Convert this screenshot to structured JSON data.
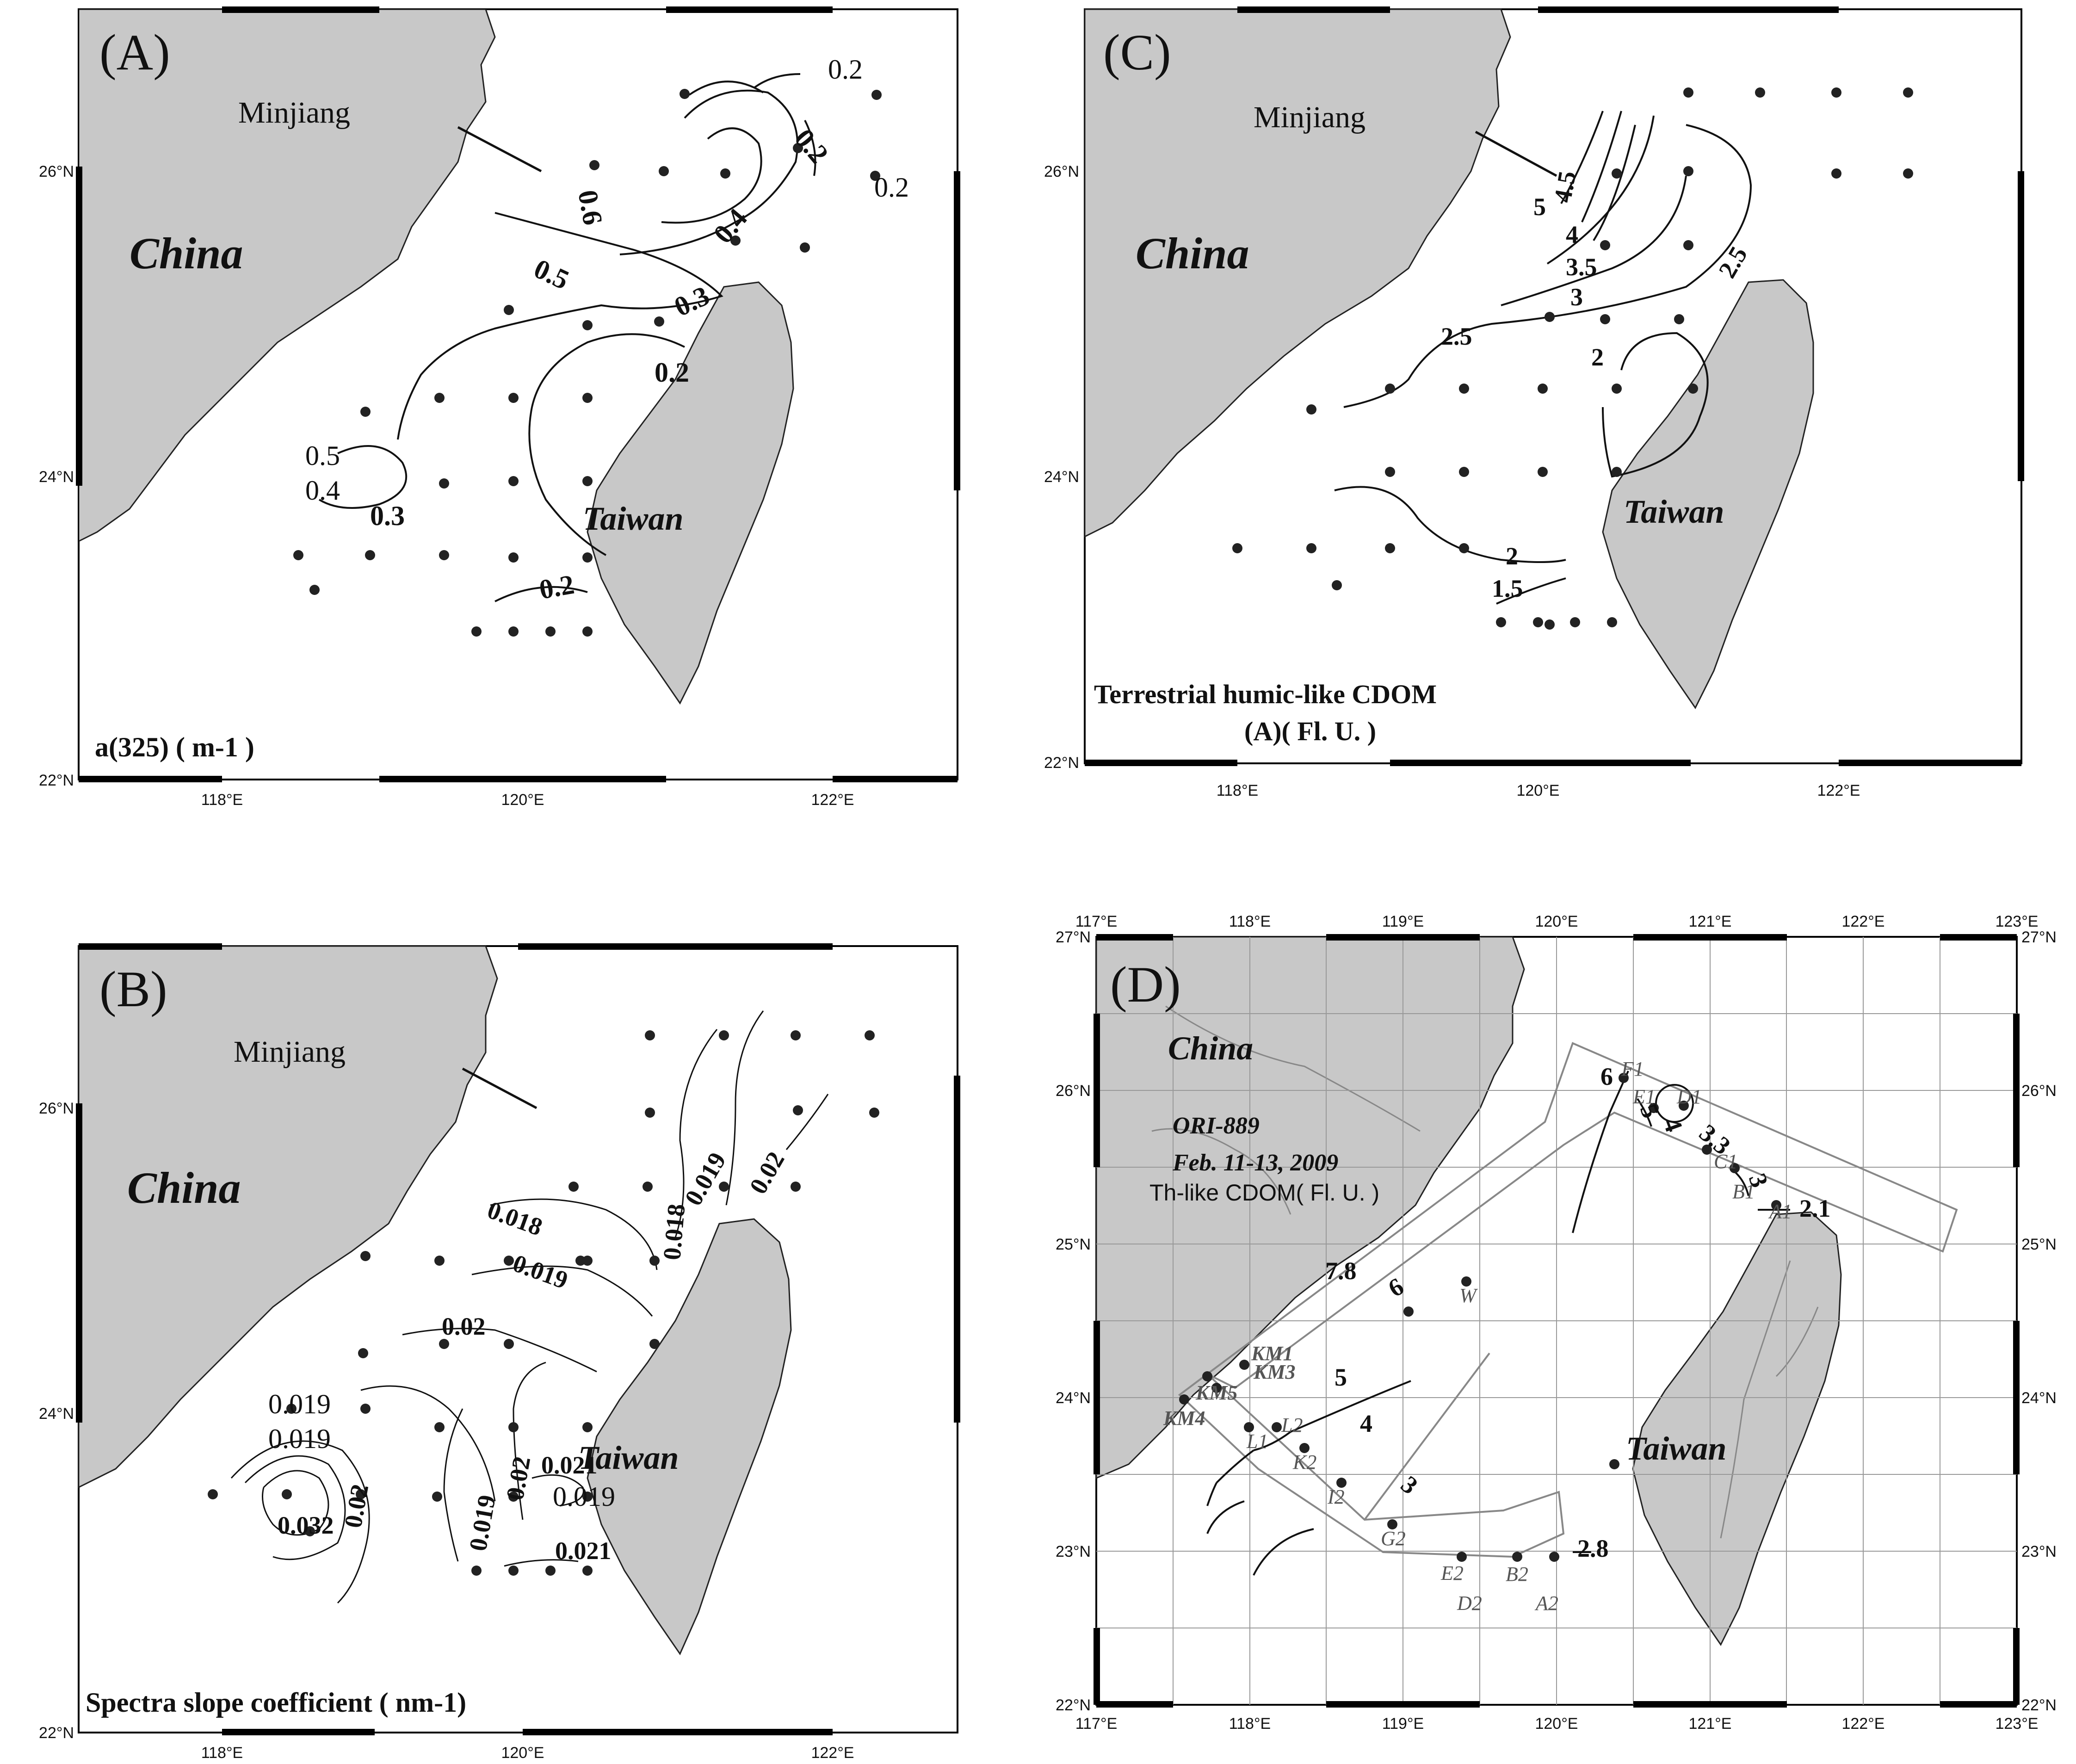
{
  "panels": [
    {
      "letter": "(A)",
      "caption": "a(325) ( m-1 )",
      "river": "Minjiang",
      "country_a": "China",
      "country_b": "Taiwan",
      "lat_ticks": [
        "26°N",
        "24°N",
        "22°N"
      ],
      "lon_ticks": [
        "118°E",
        "120°E",
        "122°E"
      ],
      "contour_labels": [
        "0.2",
        "0.2",
        "0.2",
        "0.6",
        "0.4",
        "0.5",
        "0.3",
        "0.2",
        "0.5",
        "0.4",
        "0.3",
        "0.2"
      ]
    },
    {
      "letter": "(C)",
      "caption": "Terrestrial humic-like CDOM",
      "caption2": "(A)( Fl. U. )",
      "river": "Minjiang",
      "country_a": "China",
      "country_b": "Taiwan",
      "lat_ticks": [
        "26°N",
        "24°N",
        "22°N"
      ],
      "lon_ticks": [
        "118°E",
        "120°E",
        "122°E"
      ],
      "contour_labels": [
        "5",
        "4.5",
        "4",
        "3.5",
        "3",
        "2.5",
        "2.5",
        "2",
        "2",
        "1.5"
      ]
    },
    {
      "letter": "(B)",
      "caption": "Spectra slope coefficient ( nm-1)",
      "river": "Minjiang",
      "country_a": "China",
      "country_b": "Taiwan",
      "lat_ticks": [
        "26°N",
        "24°N",
        "22°N"
      ],
      "lon_ticks": [
        "118°E",
        "120°E",
        "122°E"
      ],
      "contour_labels": [
        "0.019",
        "0.02",
        "0.018",
        "0.018",
        "0.019",
        "0.02",
        "0.019",
        "0.019",
        "0.032",
        "0.02",
        "0.019",
        "0.02",
        "0.021",
        "0.019",
        "0.021"
      ]
    },
    {
      "letter": "(D)",
      "country_a": "China",
      "country_b": "Taiwan",
      "cruise": "ORI-889",
      "dates": "Feb. 11-13, 2009",
      "variable": "Th-like CDOM( Fl. U. )",
      "lat_ticks": [
        "27°N",
        "26°N",
        "25°N",
        "24°N",
        "23°N",
        "22°N"
      ],
      "lon_ticks": [
        "117°E",
        "118°E",
        "119°E",
        "120°E",
        "121°E",
        "122°E",
        "123°E"
      ],
      "contour_labels": [
        "6",
        "5",
        "4",
        "3.3",
        "3",
        "2.1",
        "7.8",
        "6",
        "5",
        "4",
        "3",
        "2.8"
      ],
      "stations": [
        "F1",
        "E1",
        "D1",
        "C1",
        "B1",
        "A1",
        "W",
        "KM1",
        "KM3",
        "KM5",
        "KM4",
        "L2",
        "L1",
        "K2",
        "I2",
        "G2",
        "E2",
        "D2",
        "B2",
        "A2"
      ]
    }
  ]
}
